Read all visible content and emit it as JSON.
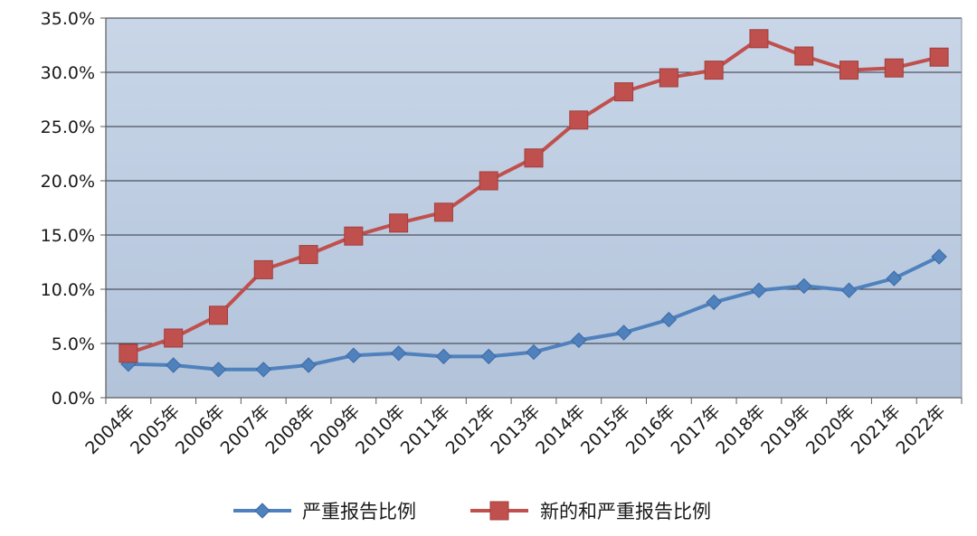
{
  "chart_data": {
    "type": "line",
    "title": "",
    "xlabel": "",
    "ylabel": "",
    "categories": [
      "2004年",
      "2005年",
      "2006年",
      "2007年",
      "2008年",
      "2009年",
      "2010年",
      "2011年",
      "2012年",
      "2013年",
      "2014年",
      "2015年",
      "2016年",
      "2017年",
      "2018年",
      "2019年",
      "2020年",
      "2021年",
      "2022年"
    ],
    "ylim": [
      0,
      35
    ],
    "y_ticks": [
      0,
      5,
      10,
      15,
      20,
      25,
      30,
      35
    ],
    "y_tick_labels": [
      "0.0%",
      "5.0%",
      "10.0%",
      "15.0%",
      "20.0%",
      "25.0%",
      "30.0%",
      "35.0%"
    ],
    "grid": "horizontal",
    "legend_position": "bottom",
    "series": [
      {
        "name": "严重报告比例",
        "color": "#4f81bd",
        "marker": "diamond",
        "values": [
          3.1,
          3.0,
          2.6,
          2.6,
          3.0,
          3.9,
          4.1,
          3.8,
          3.8,
          4.2,
          5.3,
          6.0,
          7.2,
          8.8,
          9.9,
          10.3,
          9.9,
          11.0,
          13.0
        ]
      },
      {
        "name": "新的和严重报告比例",
        "color": "#c0504d",
        "marker": "square",
        "values": [
          4.1,
          5.5,
          7.6,
          11.8,
          13.2,
          14.9,
          16.1,
          17.1,
          20.0,
          22.1,
          25.6,
          28.2,
          29.5,
          30.2,
          33.1,
          31.5,
          30.2,
          30.4,
          31.4
        ]
      }
    ],
    "plot_background": "#b9c9df",
    "grid_color": "#2f3540"
  }
}
